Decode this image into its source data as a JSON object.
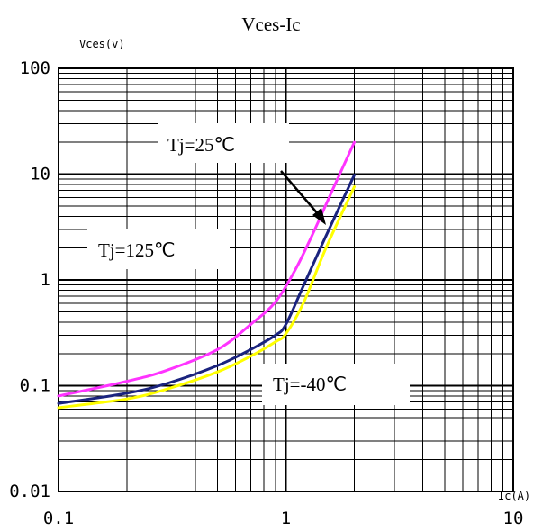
{
  "chart_data": {
    "type": "line",
    "title": "Vces-Ic",
    "xlabel": "Ic(A)",
    "ylabel": "Vces(v)",
    "xscale": "log",
    "yscale": "log",
    "xlim": [
      0.1,
      10
    ],
    "ylim": [
      0.01,
      100
    ],
    "grid": true,
    "x_ticks": [
      {
        "value": 0.1,
        "label": "0.1"
      },
      {
        "value": 1,
        "label": "1"
      },
      {
        "value": 10,
        "label": "10"
      }
    ],
    "y_ticks": [
      {
        "value": 100,
        "label": "100"
      },
      {
        "value": 10,
        "label": "10"
      },
      {
        "value": 1,
        "label": "1"
      },
      {
        "value": 0.1,
        "label": "0.1"
      },
      {
        "value": 0.01,
        "label": "0.01"
      }
    ],
    "series": [
      {
        "name": "Tj=25℃",
        "color": "#ff33ff",
        "points": [
          [
            0.1,
            0.08
          ],
          [
            0.2,
            0.11
          ],
          [
            0.3,
            0.14
          ],
          [
            0.5,
            0.22
          ],
          [
            0.7,
            0.38
          ],
          [
            0.9,
            0.62
          ],
          [
            1.1,
            1.25
          ],
          [
            1.3,
            2.6
          ],
          [
            1.6,
            7.0
          ],
          [
            2.0,
            20
          ]
        ]
      },
      {
        "name": "Tj=125℃",
        "color": "#1a237e",
        "points": [
          [
            0.1,
            0.068
          ],
          [
            0.2,
            0.085
          ],
          [
            0.3,
            0.105
          ],
          [
            0.5,
            0.155
          ],
          [
            0.7,
            0.22
          ],
          [
            0.9,
            0.3
          ],
          [
            1.0,
            0.38
          ],
          [
            1.2,
            0.9
          ],
          [
            1.5,
            2.6
          ],
          [
            2.0,
            9.8
          ]
        ]
      },
      {
        "name": "Tj=-40℃",
        "color": "#ffff00",
        "points": [
          [
            0.1,
            0.062
          ],
          [
            0.2,
            0.075
          ],
          [
            0.3,
            0.093
          ],
          [
            0.5,
            0.135
          ],
          [
            0.7,
            0.19
          ],
          [
            0.9,
            0.26
          ],
          [
            1.0,
            0.31
          ],
          [
            1.2,
            0.62
          ],
          [
            1.5,
            2.0
          ],
          [
            2.0,
            7.6
          ]
        ]
      }
    ],
    "annotations": [
      {
        "text": "Tj=25℃"
      },
      {
        "text": "Tj=125℃"
      },
      {
        "text": "Tj=-40℃"
      }
    ]
  }
}
